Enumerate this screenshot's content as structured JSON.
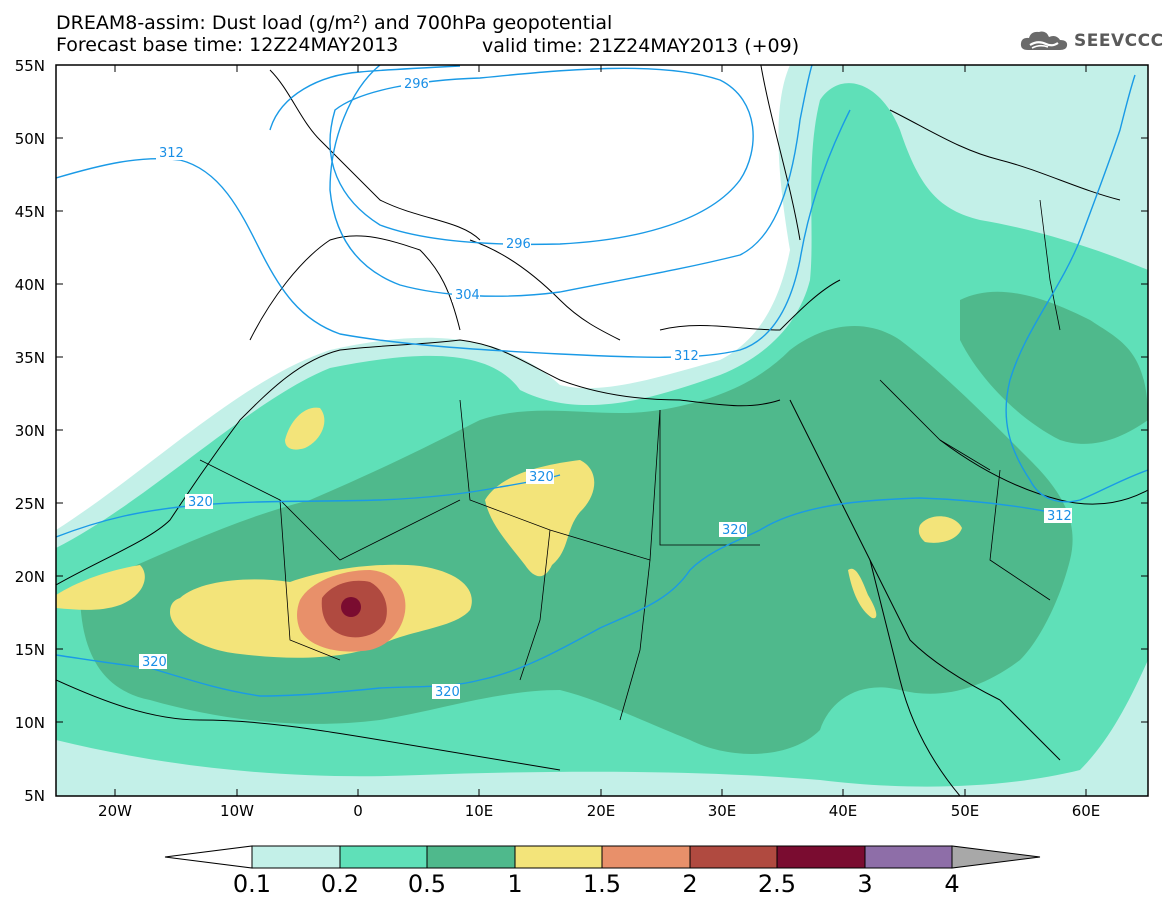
{
  "title": {
    "line1": "DREAM8-assim: Dust load (g/m²) and 700hPa geopotential",
    "line2_left": "Forecast base time: 12Z24MAY2013",
    "line2_right": "valid time: 21Z24MAY2013 (+09)"
  },
  "logo": {
    "icon": "cloud-icon",
    "text": "SEEVCCC"
  },
  "axes": {
    "lon_ticks": [
      "20W",
      "10W",
      "0",
      "10E",
      "20E",
      "30E",
      "40E",
      "50E",
      "60E"
    ],
    "lat_ticks": [
      "55N",
      "50N",
      "45N",
      "40N",
      "35N",
      "30N",
      "25N",
      "20N",
      "15N",
      "10N",
      "5N"
    ],
    "lon_range": [
      -25,
      65
    ],
    "lat_range": [
      5,
      55
    ]
  },
  "contours": {
    "geopotential_labels": [
      "296",
      "296",
      "304",
      "312",
      "312",
      "312",
      "320",
      "320",
      "320",
      "320",
      "320"
    ],
    "line_color": "#1a9ae6"
  },
  "colorbar": {
    "labels": [
      "0.1",
      "0.2",
      "0.5",
      "1",
      "1.5",
      "2",
      "2.5",
      "3",
      "4"
    ],
    "colors": [
      "#c3f0e8",
      "#5fe0b8",
      "#4fb98c",
      "#f3e47a",
      "#e8906a",
      "#b04a40",
      "#7a0c30",
      "#8e6ea8"
    ],
    "under_color": "#ffffff",
    "over_color": "#a8a8a8"
  }
}
